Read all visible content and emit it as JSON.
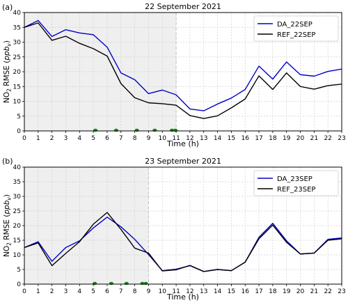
{
  "chart_data": [
    {
      "type": "line",
      "panel_label": "(a)",
      "title": "22 September 2021",
      "xlabel": "Time (h)",
      "ylabel_main": "NO",
      "ylabel_sub": "2",
      "ylabel_rest": " RMSE (",
      "ylabel_unit": "ppb",
      "ylabel_unit_sub": "v",
      "ylabel_close": ")",
      "xlim": [
        0,
        23
      ],
      "ylim": [
        0,
        40
      ],
      "xticks": [
        "0",
        "1",
        "2",
        "3",
        "4",
        "5",
        "6",
        "7",
        "8",
        "9",
        "10",
        "11",
        "12",
        "13",
        "14",
        "15",
        "16",
        "17",
        "18",
        "19",
        "20",
        "21",
        "22",
        "23"
      ],
      "yticks": [
        "0",
        "5",
        "10",
        "15",
        "20",
        "25",
        "30",
        "35",
        "40"
      ],
      "shaded_region": [
        0,
        11
      ],
      "grid": "dashed",
      "legend_position": "upper-right",
      "x": [
        0,
        1,
        2,
        3,
        4,
        5,
        6,
        7,
        8,
        9,
        10,
        11,
        12,
        13,
        14,
        15,
        16,
        17,
        18,
        19,
        20,
        21,
        22,
        23
      ],
      "series": [
        {
          "name": "DA_22SEP",
          "color": "#0000cc",
          "values": [
            35.0,
            37.3,
            31.9,
            34.2,
            33.1,
            32.5,
            28.3,
            19.6,
            17.3,
            12.6,
            13.8,
            12.2,
            7.4,
            6.8,
            9.1,
            11.1,
            14.0,
            21.9,
            17.5,
            23.3,
            19.0,
            18.5,
            20.1,
            20.9
          ]
        },
        {
          "name": "REF_22SEP",
          "color": "#000000",
          "values": [
            35.0,
            36.5,
            30.6,
            32.0,
            29.6,
            27.8,
            25.3,
            16.0,
            11.2,
            9.5,
            9.2,
            8.7,
            5.2,
            4.2,
            5.1,
            7.8,
            10.8,
            18.6,
            14.0,
            19.6,
            15.0,
            14.1,
            15.3,
            15.8
          ]
        }
      ],
      "markers": {
        "color": "#1a8a1a",
        "x": [
          5.15,
          6.65,
          8.15,
          9.45,
          10.7,
          10.95
        ]
      }
    },
    {
      "type": "line",
      "panel_label": "(b)",
      "title": "23 September 2021",
      "xlabel": "Time (h)",
      "ylabel_main": "NO",
      "ylabel_sub": "2",
      "ylabel_rest": " RMSE (",
      "ylabel_unit": "ppb",
      "ylabel_unit_sub": "v",
      "ylabel_close": ")",
      "xlim": [
        0,
        23
      ],
      "ylim": [
        0,
        40
      ],
      "xticks": [
        "0",
        "1",
        "2",
        "3",
        "4",
        "5",
        "6",
        "7",
        "8",
        "9",
        "10",
        "11",
        "12",
        "13",
        "14",
        "15",
        "16",
        "17",
        "18",
        "19",
        "20",
        "21",
        "22",
        "23"
      ],
      "yticks": [
        "0",
        "5",
        "10",
        "15",
        "20",
        "25",
        "30",
        "35",
        "40"
      ],
      "shaded_region": [
        0,
        9
      ],
      "grid": "dashed",
      "legend_position": "upper-right",
      "x": [
        0,
        1,
        2,
        3,
        4,
        5,
        6,
        7,
        8,
        9,
        10,
        11,
        12,
        13,
        14,
        15,
        16,
        17,
        18,
        19,
        20,
        21,
        22,
        23
      ],
      "series": [
        {
          "name": "DA_23SEP",
          "color": "#0000cc",
          "values": [
            12.5,
            14.5,
            7.8,
            12.5,
            14.8,
            19.2,
            22.9,
            19.6,
            15.3,
            10.1,
            4.6,
            5.1,
            6.3,
            4.3,
            5.0,
            4.6,
            7.5,
            16.0,
            20.8,
            14.8,
            10.3,
            10.6,
            15.3,
            15.8
          ]
        },
        {
          "name": "REF_23SEP",
          "color": "#000000",
          "values": [
            12.5,
            14.1,
            6.3,
            10.5,
            14.5,
            20.5,
            24.5,
            18.7,
            12.3,
            10.6,
            4.5,
            4.9,
            6.4,
            4.3,
            5.0,
            4.6,
            7.5,
            15.5,
            20.2,
            14.3,
            10.3,
            10.6,
            15.0,
            15.5
          ]
        }
      ],
      "markers": {
        "color": "#1a8a1a",
        "x": [
          5.1,
          6.3,
          7.4,
          8.55,
          8.8
        ]
      }
    }
  ]
}
